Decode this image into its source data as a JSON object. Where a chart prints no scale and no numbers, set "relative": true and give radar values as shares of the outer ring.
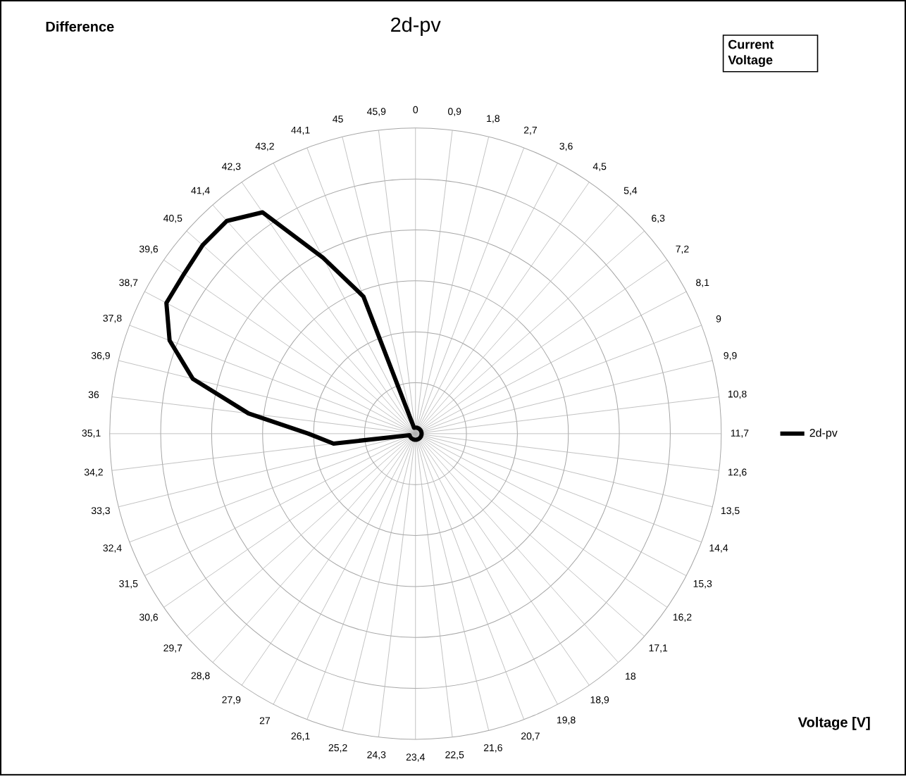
{
  "chart_data": {
    "type": "radar",
    "title": "2d-pv",
    "ylabel": "Difference",
    "xlabel": "Voltage [V]",
    "legend_title": "Current Voltage",
    "categories": [
      "0",
      "0,9",
      "1,8",
      "2,7",
      "3,6",
      "4,5",
      "5,4",
      "6,3",
      "7,2",
      "8,1",
      "9",
      "9,9",
      "10,8",
      "11,7",
      "12,6",
      "13,5",
      "14,4",
      "15,3",
      "16,2",
      "17,1",
      "18",
      "18,9",
      "19,8",
      "20,7",
      "21,6",
      "22,5",
      "23,4",
      "24,3",
      "25,2",
      "26,1",
      "27",
      "27,9",
      "28,8",
      "29,7",
      "30,6",
      "31,5",
      "32,4",
      "33,3",
      "34,2",
      "35,1",
      "36",
      "36,9",
      "37,8",
      "38,7",
      "39,6",
      "40,5",
      "41,4",
      "42,3",
      "43,2",
      "44,1",
      "45",
      "45,9"
    ],
    "relative": true,
    "grid": true,
    "legend": "right",
    "marker": "none",
    "line_style": "solid",
    "series": [
      {
        "name": "2d-pv",
        "color": "#000000",
        "values": [
          0.02,
          0.02,
          0.02,
          0.02,
          0.02,
          0.02,
          0.02,
          0.02,
          0.02,
          0.02,
          0.02,
          0.02,
          0.02,
          0.02,
          0.02,
          0.02,
          0.02,
          0.02,
          0.02,
          0.02,
          0.02,
          0.02,
          0.02,
          0.02,
          0.02,
          0.02,
          0.02,
          0.02,
          0.02,
          0.02,
          0.02,
          0.02,
          0.02,
          0.02,
          0.02,
          0.02,
          0.02,
          0.02,
          0.27,
          0.35,
          0.55,
          0.75,
          0.86,
          0.92,
          0.92,
          0.93,
          0.93,
          0.88,
          0.65,
          0.48,
          0.02,
          0.02
        ]
      }
    ]
  }
}
